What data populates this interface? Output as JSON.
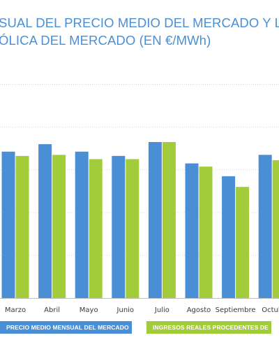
{
  "title": {
    "line1": "SUAL DEL PRECIO MEDIO DEL MERCADO Y LOS",
    "line2": "ÓLICA DEL MERCADO (EN €/MWh)"
  },
  "colors": {
    "title": "#4a8fd6",
    "series_blue": "#4a8fd6",
    "series_green": "#a3cc3a",
    "gridline": "#d5d5d5",
    "tick_text": "#3a3a3a"
  },
  "chart_data": {
    "type": "bar",
    "title": "SUAL DEL PRECIO MEDIO DEL MERCADO Y LOS ÓLICA DEL MERCADO (EN €/MWh)",
    "categories": [
      "Marzo",
      "Abril",
      "Mayo",
      "Junio",
      "Julio",
      "Agosto",
      "Septiembre",
      "Octub"
    ],
    "series": [
      {
        "name": "PRECIO MEDIO MENSUAL DEL MERCADO",
        "color": "#4a8fd6",
        "values": [
          68.5,
          72,
          68.5,
          66.5,
          73,
          63,
          57,
          67
        ]
      },
      {
        "name": "INGRESOS REALES PROCEDENTES DE",
        "color": "#a3cc3a",
        "values": [
          66.5,
          67,
          65,
          65,
          73,
          61.5,
          52,
          64.5
        ]
      }
    ],
    "ylim": [
      0,
      110
    ],
    "grid": true,
    "legend": "bottom"
  },
  "legend": {
    "items": [
      {
        "label": "PRECIO MEDIO MENSUAL DEL MERCADO",
        "color": "#4a8fd6"
      },
      {
        "label": "INGRESOS REALES PROCEDENTES DE",
        "color": "#a3cc3a"
      }
    ]
  }
}
